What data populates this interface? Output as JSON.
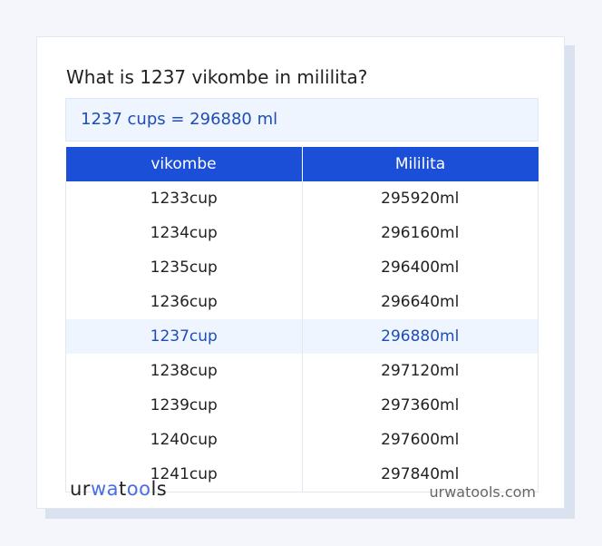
{
  "title": "What is 1237 vikombe in mililita?",
  "result": "1237 cups = 296880 ml",
  "table": {
    "headers": [
      "vikombe",
      "Mililita"
    ],
    "rows": [
      [
        "1233cup",
        "295920ml"
      ],
      [
        "1234cup",
        "296160ml"
      ],
      [
        "1235cup",
        "296400ml"
      ],
      [
        "1236cup",
        "296640ml"
      ],
      [
        "1237cup",
        "296880ml"
      ],
      [
        "1238cup",
        "297120ml"
      ],
      [
        "1239cup",
        "297360ml"
      ],
      [
        "1240cup",
        "297600ml"
      ],
      [
        "1241cup",
        "297840ml"
      ]
    ],
    "highlighted_row": 4
  },
  "footer": {
    "logo": "urwatools",
    "site": "urwatools.com"
  },
  "colors": {
    "accent": "#1c4fd8",
    "highlight_bg": "#eef5ff"
  }
}
